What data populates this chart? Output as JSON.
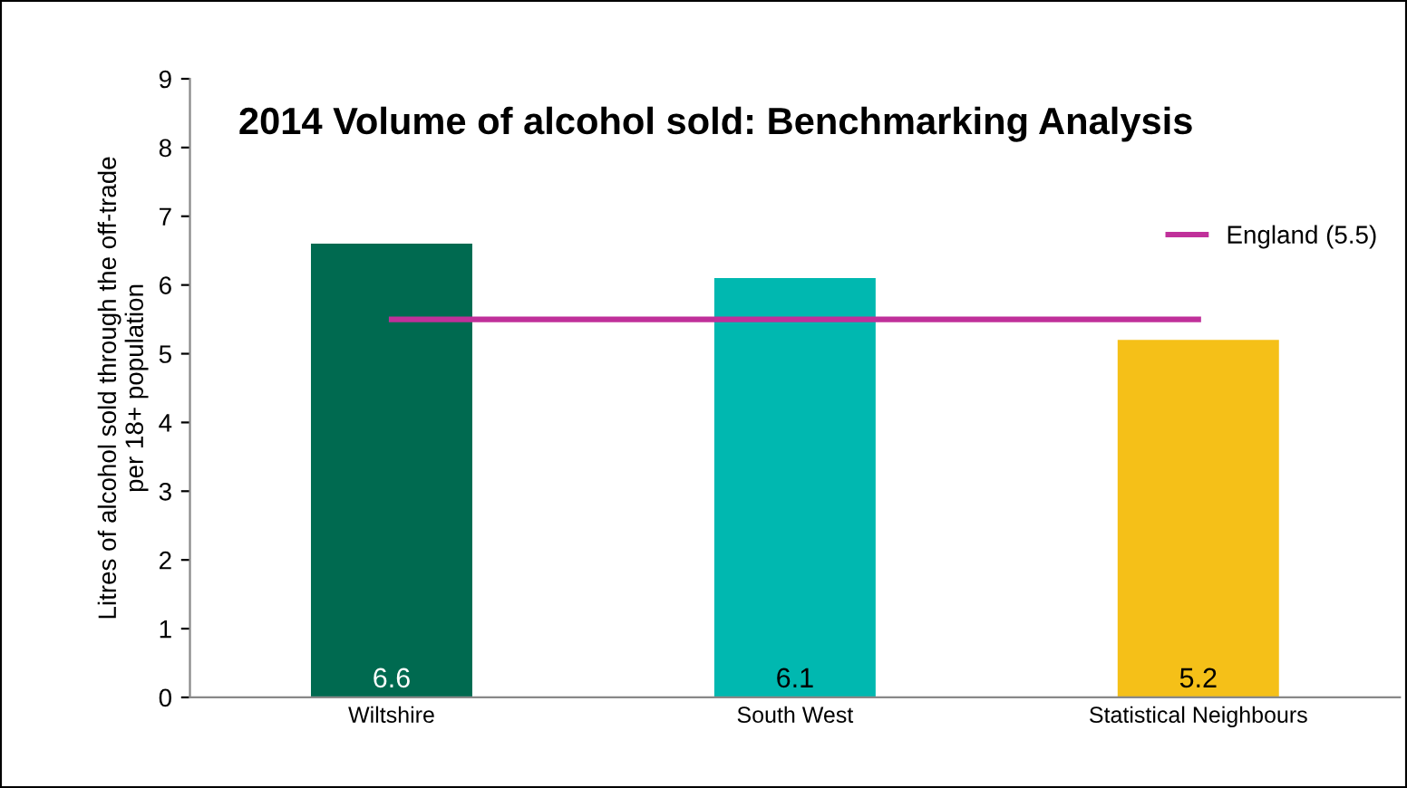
{
  "chart_data": {
    "type": "bar",
    "title": "2014 Volume of alcohol sold: Benchmarking Analysis",
    "ylabel": "Litres of alcohol sold through the off-trade\nper 18+ population",
    "categories": [
      "Wiltshire",
      "South West",
      "Statistical Neighbours"
    ],
    "series": [
      {
        "colors": [
          "#006a50",
          "#00b8b0",
          "#f5c018"
        ],
        "values": [
          6.6,
          6.1,
          5.2
        ],
        "value_labels": [
          "6.6",
          "6.1",
          "5.2"
        ]
      },
      {
        "type": "line",
        "name": "England (5.5)",
        "color": "#c0309a",
        "values": [
          5.5,
          5.5,
          5.5
        ]
      }
    ],
    "ylim": [
      0,
      9
    ],
    "yticks": [
      0,
      1,
      2,
      3,
      4,
      5,
      6,
      7,
      8,
      9
    ],
    "grid": false,
    "legend": "top right",
    "marker": "none",
    "line_style": "solid"
  }
}
